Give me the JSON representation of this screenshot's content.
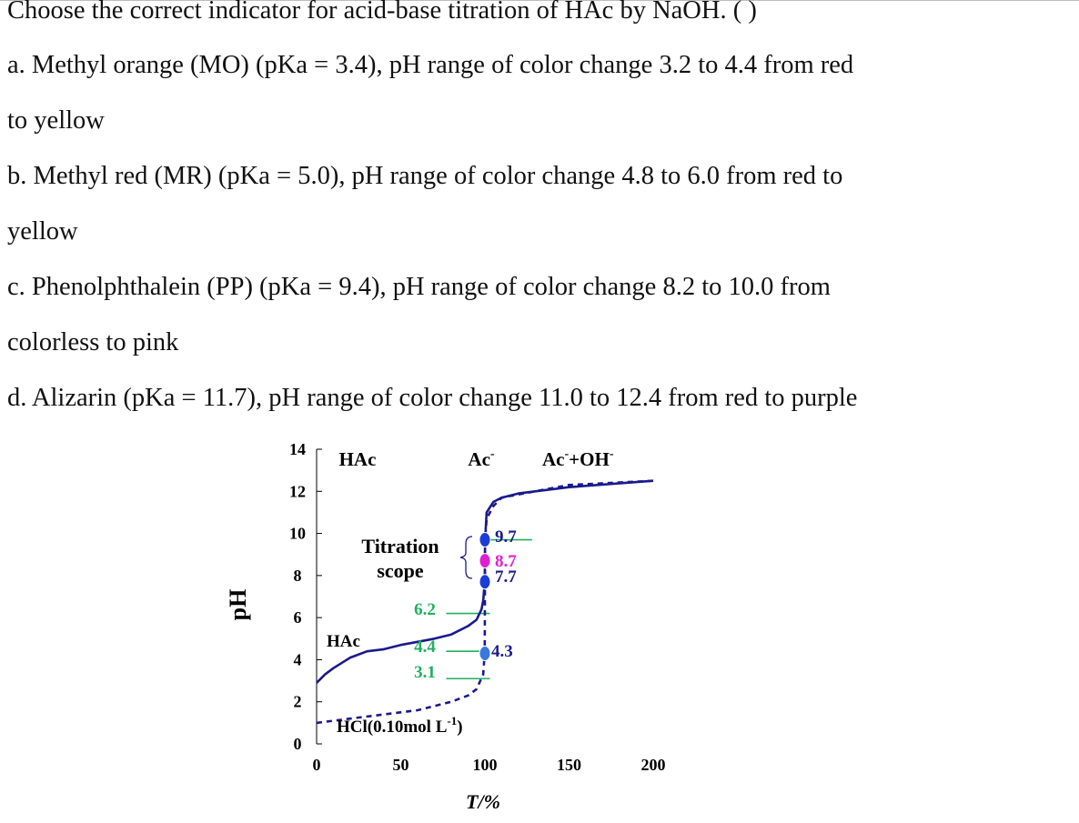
{
  "question": {
    "stem": "Choose the correct indicator for acid-base titration of HAc by NaOH. (    )",
    "option_lines": [
      "a. Methyl orange (MO) (pKa = 3.4), pH range of color change 3.2 to 4.4 from red",
      "to yellow",
      "b. Methyl red (MR) (pKa = 5.0), pH range of color change 4.8 to 6.0 from red to",
      "yellow",
      "c. Phenolphthalein (PP) (pKa = 9.4), pH range of color change 8.2 to 10.0 from",
      "colorless to pink",
      "d. Alizarin (pKa = 11.7), pH range of color change 11.0 to 12.4 from red to purple"
    ]
  },
  "figure": {
    "colors": {
      "curve": "#1a1a8c",
      "green": "#20b060",
      "magenta": "#e020d0",
      "blue_point": "#1a3cd8",
      "axis": "#000000"
    },
    "region_labels": [
      "HAc",
      "Ac",
      "Ac+OH"
    ],
    "titration_scope_label": [
      "Titration",
      "scope"
    ],
    "curve_label_hac": "HAc",
    "curve_label_hcl": "HCl(0.10mol L",
    "curve_label_hcl_tail": ")",
    "marker_labels": {
      "upper": "9.7",
      "mid": "8.7",
      "lower": "7.7",
      "hcl_mid": "4.3"
    },
    "green_labels": [
      "6.2",
      "4.4",
      "3.1"
    ]
  },
  "chart_data": {
    "type": "line",
    "title": "",
    "xlabel": "T/%",
    "ylabel": "pH",
    "xlim": [
      0,
      200
    ],
    "ylim": [
      0,
      14
    ],
    "xticks": [
      "0",
      "50",
      "100",
      "150",
      "200"
    ],
    "yticks": [
      "0",
      "2",
      "4",
      "6",
      "8",
      "10",
      "12",
      "14"
    ],
    "series": [
      {
        "name": "HAc",
        "style": "solid",
        "x": [
          0,
          5,
          10,
          20,
          30,
          40,
          50,
          60,
          70,
          80,
          90,
          95,
          98,
          99,
          99.9,
          100,
          100.1,
          101,
          105,
          110,
          120,
          150,
          200
        ],
        "y": [
          2.9,
          3.3,
          3.6,
          4.1,
          4.4,
          4.5,
          4.7,
          4.85,
          5.0,
          5.2,
          5.6,
          5.9,
          6.4,
          6.8,
          7.7,
          8.7,
          9.7,
          11.0,
          11.5,
          11.7,
          11.9,
          12.2,
          12.5
        ]
      },
      {
        "name": "HCl(0.10mol L-1)",
        "style": "dashed",
        "x": [
          0,
          20,
          40,
          60,
          80,
          90,
          95,
          99,
          99.9,
          100,
          100.1,
          101,
          105,
          110,
          150,
          200
        ],
        "y": [
          1.0,
          1.2,
          1.4,
          1.6,
          2.0,
          2.3,
          2.6,
          3.3,
          4.3,
          7.0,
          9.7,
          10.7,
          11.3,
          11.7,
          12.3,
          12.5
        ]
      }
    ],
    "markers": [
      {
        "x": 100,
        "y": 9.7,
        "label": "9.7"
      },
      {
        "x": 100,
        "y": 8.7,
        "label": "8.7"
      },
      {
        "x": 100,
        "y": 7.7,
        "label": "7.7"
      },
      {
        "x": 100,
        "y": 4.3,
        "label": "4.3"
      }
    ],
    "reference_levels": [
      9.7,
      6.2,
      4.4,
      3.1
    ]
  }
}
